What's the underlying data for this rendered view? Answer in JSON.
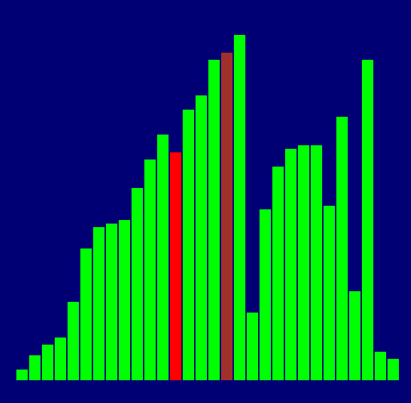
{
  "colors": {
    "background": "#000074",
    "default_bar": "#00ff00",
    "highlight_red": "#ff0000",
    "highlight_brown": "#a0302c"
  },
  "chart_data": {
    "type": "bar",
    "ylim": [
      0,
      100
    ],
    "values": [
      3,
      7,
      10,
      12,
      22,
      37,
      43,
      44,
      45,
      54,
      62,
      69,
      64,
      76,
      80,
      90,
      92,
      97,
      19,
      48,
      60,
      65,
      66,
      66,
      49,
      74,
      25,
      90,
      8,
      6
    ],
    "bar_states": [
      "default",
      "default",
      "default",
      "default",
      "default",
      "default",
      "default",
      "default",
      "default",
      "default",
      "default",
      "default",
      "highlight_red",
      "default",
      "default",
      "default",
      "highlight_brown",
      "default",
      "default",
      "default",
      "default",
      "default",
      "default",
      "default",
      "default",
      "default",
      "default",
      "default",
      "default",
      "default"
    ]
  }
}
